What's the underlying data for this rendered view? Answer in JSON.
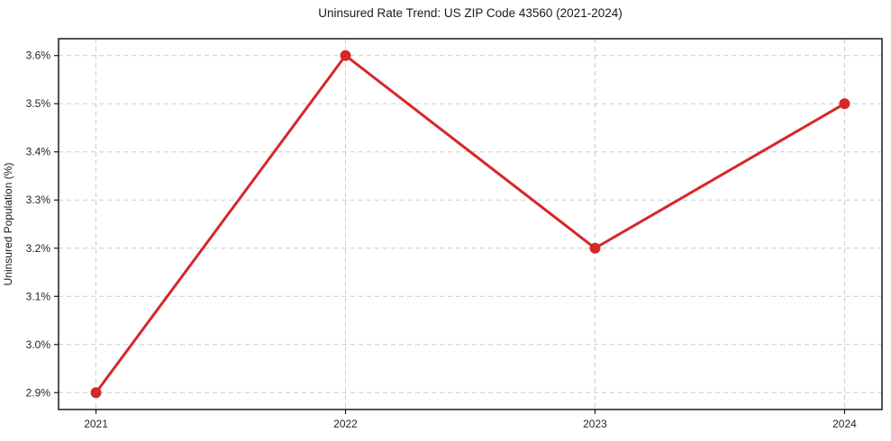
{
  "chart_data": {
    "type": "line",
    "title": "Uninsured Rate Trend: US ZIP Code 43560 (2021-2024)",
    "xlabel": "",
    "ylabel": "Uninsured Population (%)",
    "x": [
      2021,
      2022,
      2023,
      2024
    ],
    "values": [
      2.9,
      3.6,
      3.2,
      3.5
    ],
    "series_name": "Uninsured rate",
    "xtick_labels": [
      "2021",
      "2022",
      "2023",
      "2024"
    ],
    "yticks": [
      2.9,
      3.0,
      3.1,
      3.2,
      3.3,
      3.4,
      3.5,
      3.6
    ],
    "ytick_labels": [
      "2.9%",
      "3.0%",
      "3.1%",
      "3.2%",
      "3.3%",
      "3.4%",
      "3.5%",
      "3.6%"
    ],
    "xlim": [
      2020.85,
      2024.15
    ],
    "ylim": [
      2.865,
      3.635
    ],
    "grid": true,
    "grid_style": "dashed",
    "legend": false,
    "colors": {
      "line": "#d62728",
      "marker": "#d62728",
      "gridline": "#cccccc",
      "axis_border": "#1a1a1a",
      "background": "#ffffff"
    }
  }
}
